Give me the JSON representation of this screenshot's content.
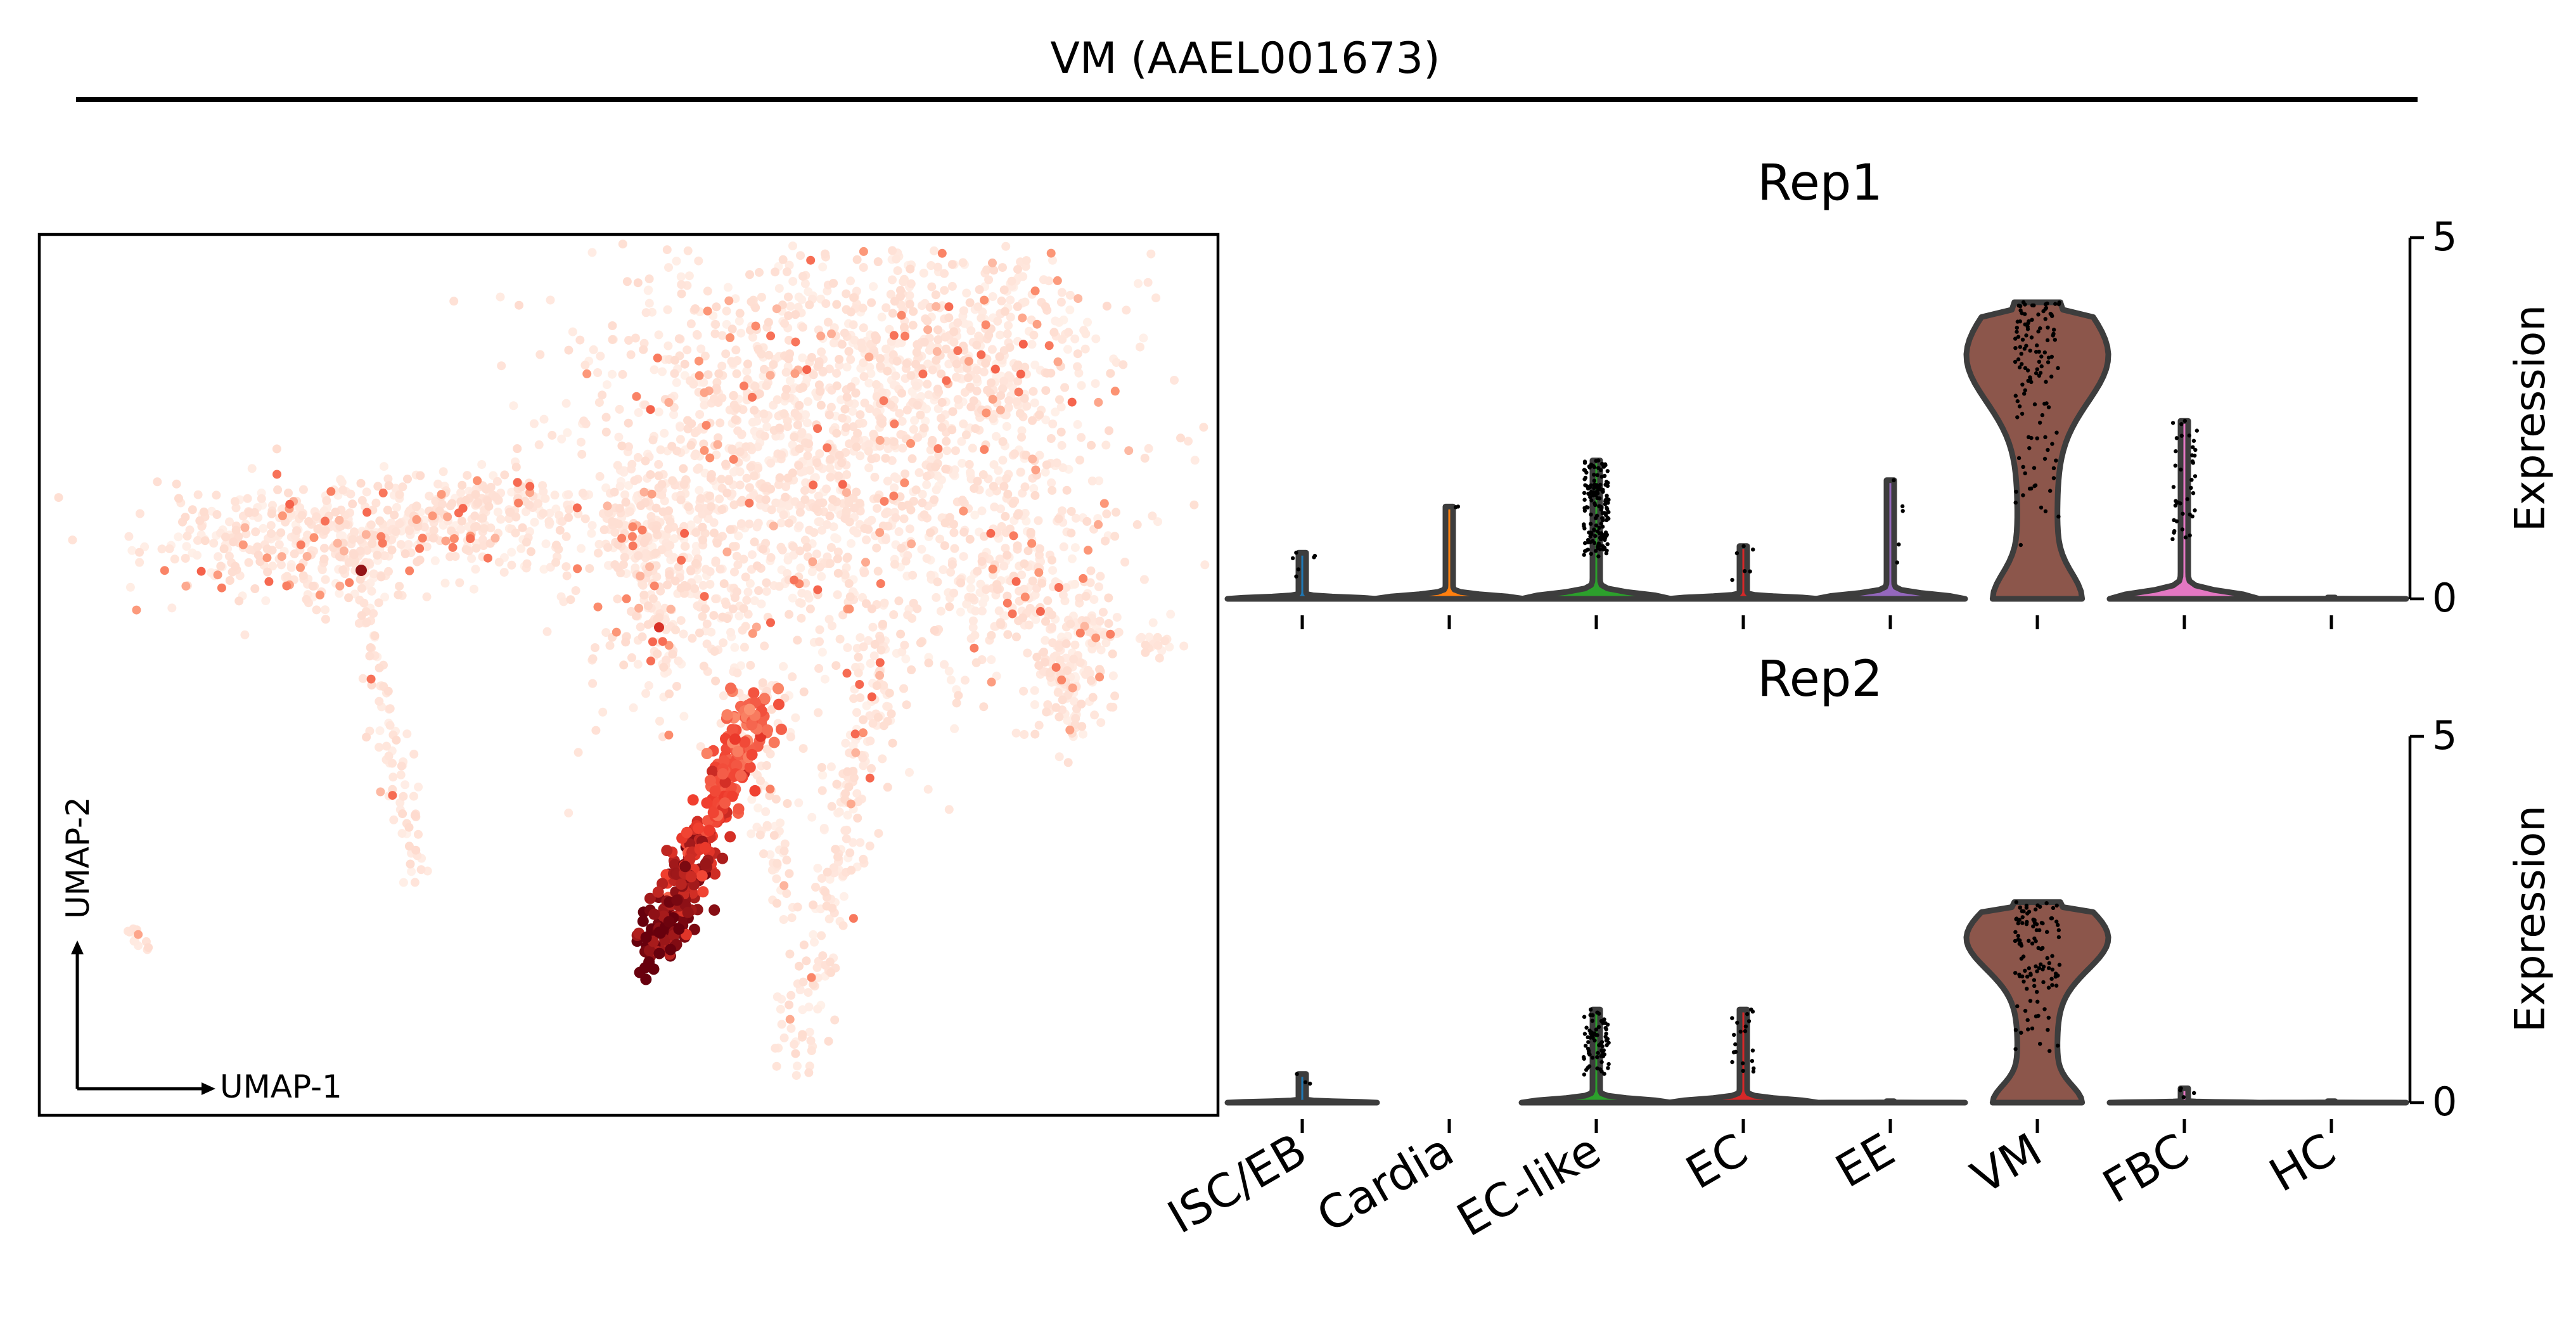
{
  "figure": {
    "title": "VM (AAEL001673)"
  },
  "colors": {
    "text": "#000000",
    "violin_edge": "#3d3d3d",
    "umap_low": "#fff1ea",
    "umap_high": "#67000d"
  },
  "chart_data": [
    {
      "type": "scatter",
      "name": "UMAP",
      "xlabel": "UMAP-1",
      "ylabel": "UMAP-2",
      "colormap": "Reds",
      "note_hotspot": "highest expression concentrated in lower-central branch"
    },
    {
      "type": "violin",
      "title": "Rep1",
      "ylabel": "Expression",
      "ylim": [
        0,
        5
      ],
      "yticks": [
        "0",
        "5"
      ],
      "categories": [
        "ISC/EB",
        "Cardia",
        "EC-like",
        "EC",
        "EE",
        "VM",
        "FBC",
        "HC"
      ],
      "max_values": [
        0.7,
        1.4,
        2.1,
        0.8,
        1.8,
        4.5,
        2.7,
        0.0
      ],
      "fill_colors": [
        "#1f77b4",
        "#ff7f0e",
        "#2ca02c",
        "#d62728",
        "#9467bd",
        "#8c564b",
        "#e377c2",
        "#7f7f7f"
      ],
      "jitter_counts": [
        6,
        2,
        160,
        6,
        5,
        120,
        40,
        0
      ]
    },
    {
      "type": "violin",
      "title": "Rep2",
      "ylabel": "Expression",
      "ylim": [
        0,
        5
      ],
      "yticks": [
        "0",
        "5"
      ],
      "categories": [
        "ISC/EB",
        "Cardia",
        "EC-like",
        "EC",
        "EE",
        "VM",
        "FBC",
        "HC"
      ],
      "max_values": [
        0.4,
        0.0,
        1.3,
        1.3,
        0.0,
        2.8,
        0.2,
        0.0
      ],
      "fill_colors": [
        "#1f77b4",
        "#ff7f0e",
        "#2ca02c",
        "#d62728",
        "#9467bd",
        "#8c564b",
        "#e377c2",
        "#7f7f7f"
      ],
      "jitter_counts": [
        3,
        0,
        70,
        20,
        0,
        110,
        4,
        0
      ]
    }
  ]
}
